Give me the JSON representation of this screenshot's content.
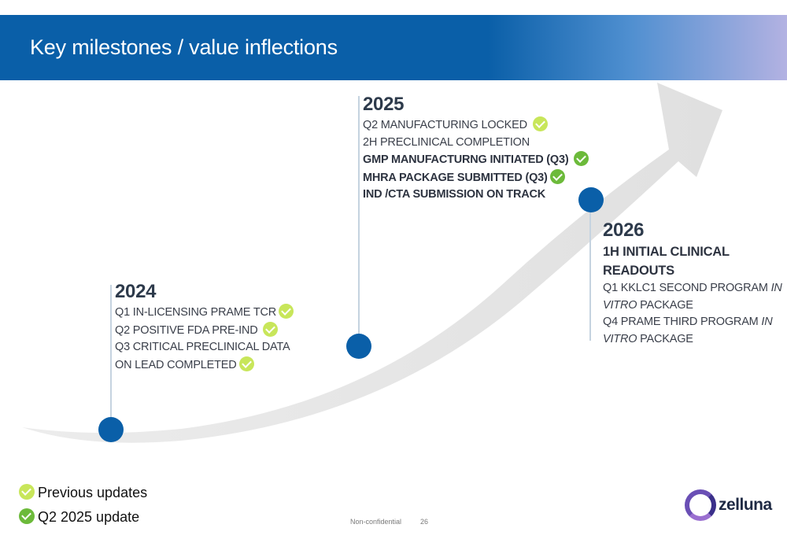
{
  "header": {
    "title": "Key milestones / value inflections"
  },
  "milestones": [
    {
      "year": "2024",
      "items": [
        {
          "text": "Q1  IN-LICENSING PRAME TCR",
          "check": "previous",
          "style": "normal"
        },
        {
          "text": "Q2 POSITIVE FDA PRE-IND",
          "check": "previous",
          "style": "normal"
        },
        {
          "text": "Q3 CRITICAL PRECLINICAL DATA",
          "check": "none",
          "style": "normal"
        },
        {
          "text": "ON LEAD COMPLETED",
          "check": "previous",
          "style": "normal"
        }
      ]
    },
    {
      "year": "2025",
      "items": [
        {
          "text": "Q2 MANUFACTURING LOCKED",
          "check": "previous",
          "style": "normal"
        },
        {
          "text": "2H PRECLINICAL COMPLETION",
          "check": "none",
          "style": "normal"
        },
        {
          "text": "GMP MANUFACTURNG INITIATED (Q3)",
          "check": "current",
          "style": "bold"
        },
        {
          "text": "MHRA PACKAGE SUBMITTED (Q3)",
          "check": "current",
          "style": "bold"
        },
        {
          "text": "IND /CTA SUBMISSION ON TRACK",
          "check": "none",
          "style": "bold"
        }
      ]
    },
    {
      "year": "2026",
      "items": [
        {
          "text": "1H INITIAL CLINICAL",
          "style": "big"
        },
        {
          "text": "READOUTS",
          "style": "big"
        },
        {
          "text": "Q1 KKLC1 SECOND PROGRAM ",
          "italic": "IN",
          "style": "normal"
        },
        {
          "text": " ",
          "italic": "VITRO",
          "after": " PACKAGE",
          "style": "normal"
        },
        {
          "text": "Q4 PRAME THIRD PROGRAM ",
          "italic": "IN",
          "style": "normal"
        },
        {
          "text": " ",
          "italic": "VITRO",
          "after": " PACKAGE",
          "style": "normal"
        }
      ]
    }
  ],
  "legend": {
    "previous": "Previous updates",
    "current": "Q2 2025 update"
  },
  "footer": {
    "confidentiality": "Non-confidential",
    "page_number": "26"
  },
  "logo": {
    "name": "zelluna"
  },
  "colors": {
    "header_blue": "#0a5fa8",
    "header_end": "#b3b2e2",
    "dot_blue": "#0a5fa8",
    "check_previous": "#c8e65a",
    "check_current": "#6cba3a",
    "arrow_gray": "#e3e3e3"
  }
}
